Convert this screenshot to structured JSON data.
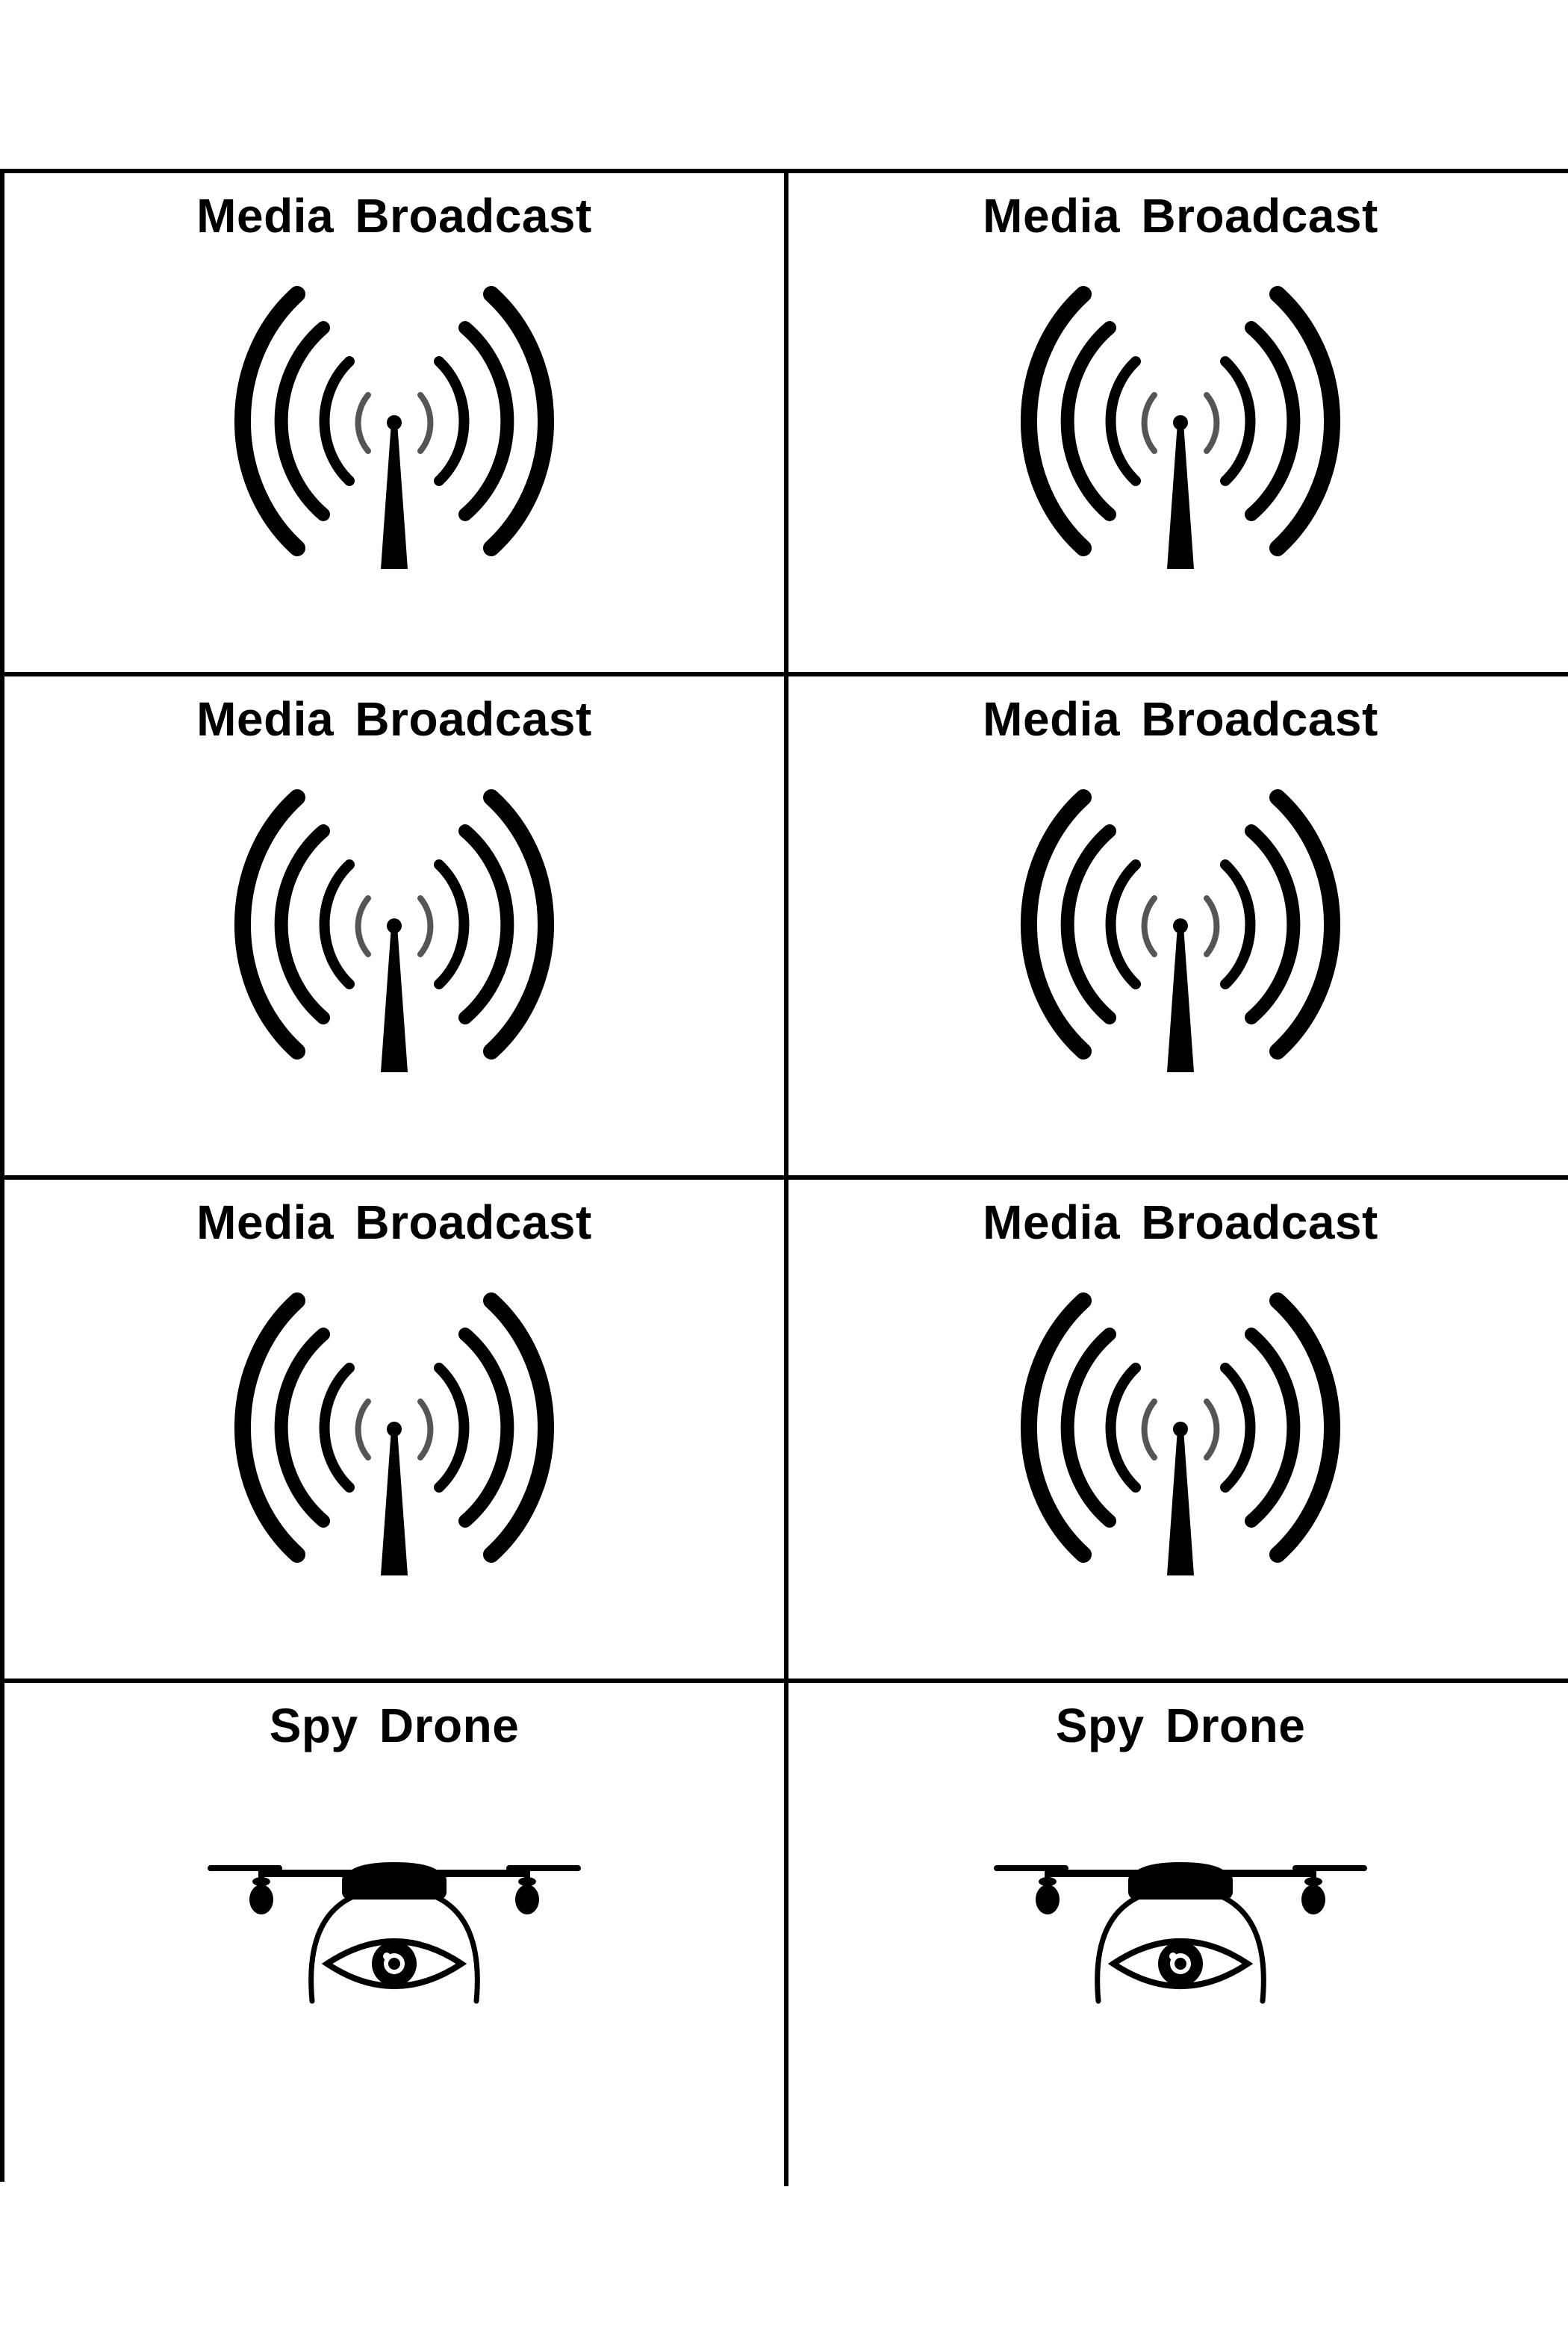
{
  "cards": [
    {
      "title": "Media Broadcast",
      "icon": "broadcast-antenna-icon"
    },
    {
      "title": "Media Broadcast",
      "icon": "broadcast-antenna-icon"
    },
    {
      "title": "Media Broadcast",
      "icon": "broadcast-antenna-icon"
    },
    {
      "title": "Media Broadcast",
      "icon": "broadcast-antenna-icon"
    },
    {
      "title": "Media Broadcast",
      "icon": "broadcast-antenna-icon"
    },
    {
      "title": "Media Broadcast",
      "icon": "broadcast-antenna-icon"
    },
    {
      "title": "Spy Drone",
      "icon": "spy-drone-icon"
    },
    {
      "title": "Spy Drone",
      "icon": "spy-drone-icon"
    }
  ],
  "colors": {
    "ink": "#000000",
    "paper": "#ffffff"
  }
}
